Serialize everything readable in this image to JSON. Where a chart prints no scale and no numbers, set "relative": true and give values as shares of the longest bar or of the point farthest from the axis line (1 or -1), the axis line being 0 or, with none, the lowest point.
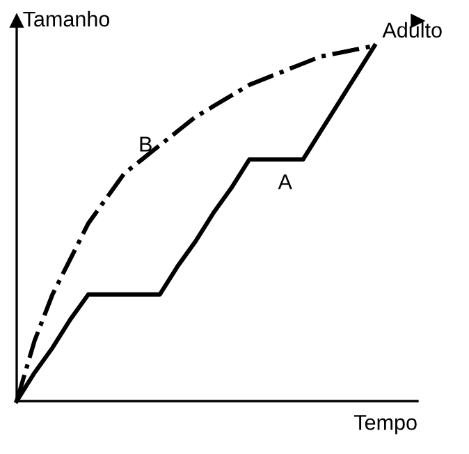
{
  "chart_data": {
    "type": "line",
    "relative": true,
    "xlabel": "Tempo",
    "ylabel": "Tamanho",
    "legend": false,
    "annotations": [
      "Adulto"
    ],
    "categories": [
      null,
      null,
      null,
      null,
      null,
      null,
      null,
      null,
      null,
      null,
      null,
      null,
      null,
      null,
      null,
      null,
      null,
      null,
      null,
      null,
      null
    ],
    "series": [
      {
        "name": "A",
        "color": "#000000",
        "line_style": "solid",
        "values": [
          0,
          0.08,
          0.15,
          0.23,
          0.3,
          0.3,
          0.3,
          0.3,
          0.3,
          0.38,
          0.45,
          0.53,
          0.6,
          0.68,
          0.68,
          0.68,
          0.68,
          0.76,
          0.84,
          0.92,
          1.0
        ]
      },
      {
        "name": "B",
        "color": "#000000",
        "line_style": "dashdot",
        "values": [
          0,
          0.17,
          0.3,
          0.4,
          0.5,
          0.57,
          0.64,
          0.68,
          0.72,
          0.76,
          0.8,
          0.83,
          0.86,
          0.89,
          0.91,
          0.93,
          0.95,
          0.97,
          0.98,
          0.99,
          1.0
        ]
      }
    ]
  }
}
